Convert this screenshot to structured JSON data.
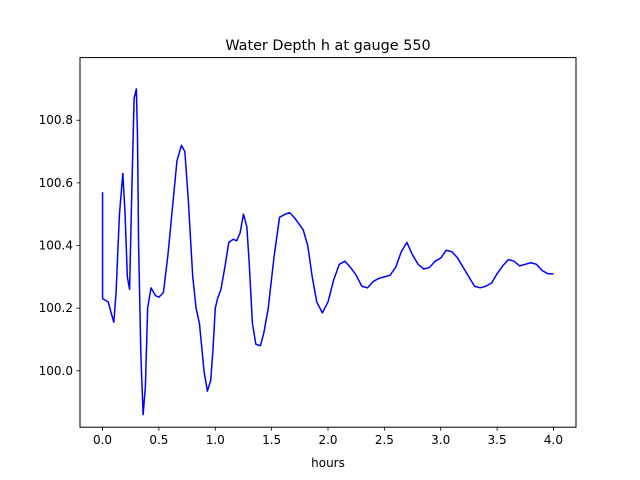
{
  "chart_data": {
    "type": "line",
    "title": "Water Depth h at gauge 550",
    "xlabel": "hours",
    "ylabel": "",
    "xlim": [
      -0.2,
      4.2
    ],
    "ylim": [
      99.82,
      101.0
    ],
    "xticks": [
      0.0,
      0.5,
      1.0,
      1.5,
      2.0,
      2.5,
      3.0,
      3.5,
      4.0
    ],
    "xtick_labels": [
      "0.0",
      "0.5",
      "1.0",
      "1.5",
      "2.0",
      "2.5",
      "3.0",
      "3.5",
      "4.0"
    ],
    "yticks": [
      100.0,
      100.2,
      100.4,
      100.6,
      100.8
    ],
    "ytick_labels": [
      "100.0",
      "100.2",
      "100.4",
      "100.6",
      "100.8"
    ],
    "grid": false,
    "series": [
      {
        "color": "#0000ff",
        "x": [
          0.0,
          0.0,
          0.002,
          0.05,
          0.08,
          0.1,
          0.12,
          0.15,
          0.18,
          0.2,
          0.22,
          0.24,
          0.26,
          0.28,
          0.3,
          0.31,
          0.32,
          0.34,
          0.36,
          0.38,
          0.4,
          0.43,
          0.47,
          0.5,
          0.54,
          0.58,
          0.62,
          0.66,
          0.7,
          0.73,
          0.76,
          0.8,
          0.83,
          0.86,
          0.9,
          0.93,
          0.96,
          0.98,
          1.0,
          1.02,
          1.05,
          1.08,
          1.12,
          1.16,
          1.19,
          1.22,
          1.25,
          1.28,
          1.3,
          1.33,
          1.36,
          1.4,
          1.43,
          1.47,
          1.52,
          1.57,
          1.62,
          1.66,
          1.7,
          1.74,
          1.78,
          1.82,
          1.86,
          1.9,
          1.95,
          2.0,
          2.05,
          2.1,
          2.15,
          2.2,
          2.25,
          2.3,
          2.35,
          2.4,
          2.45,
          2.5,
          2.55,
          2.6,
          2.65,
          2.7,
          2.75,
          2.8,
          2.85,
          2.9,
          2.95,
          3.0,
          3.05,
          3.1,
          3.15,
          3.2,
          3.25,
          3.3,
          3.35,
          3.4,
          3.45,
          3.5,
          3.55,
          3.6,
          3.65,
          3.7,
          3.75,
          3.8,
          3.85,
          3.9,
          3.95,
          4.0
        ],
        "y": [
          100.57,
          100.235,
          100.23,
          100.22,
          100.18,
          100.155,
          100.25,
          100.5,
          100.63,
          100.5,
          100.3,
          100.26,
          100.58,
          100.87,
          100.9,
          100.75,
          100.4,
          100.05,
          99.86,
          99.95,
          100.2,
          100.265,
          100.24,
          100.235,
          100.25,
          100.37,
          100.52,
          100.67,
          100.72,
          100.7,
          100.55,
          100.3,
          100.2,
          100.15,
          100.0,
          99.935,
          99.97,
          100.07,
          100.2,
          100.23,
          100.26,
          100.32,
          100.41,
          100.42,
          100.415,
          100.44,
          100.5,
          100.46,
          100.35,
          100.15,
          100.085,
          100.08,
          100.12,
          100.2,
          100.36,
          100.49,
          100.5,
          100.505,
          100.49,
          100.47,
          100.45,
          100.4,
          100.3,
          100.22,
          100.185,
          100.22,
          100.29,
          100.34,
          100.35,
          100.33,
          100.305,
          100.27,
          100.265,
          100.285,
          100.295,
          100.3,
          100.305,
          100.33,
          100.38,
          100.41,
          100.37,
          100.34,
          100.325,
          100.33,
          100.35,
          100.36,
          100.385,
          100.38,
          100.36,
          100.33,
          100.3,
          100.27,
          100.265,
          100.27,
          100.28,
          100.31,
          100.335,
          100.355,
          100.35,
          100.335,
          100.34,
          100.345,
          100.34,
          100.32,
          100.31,
          100.31
        ]
      }
    ]
  }
}
